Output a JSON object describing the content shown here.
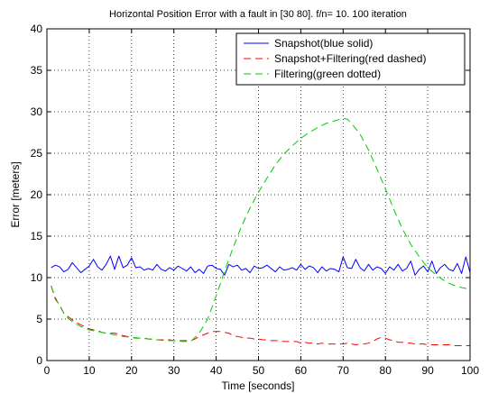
{
  "chart_data": {
    "type": "line",
    "title": "Horizontal Position Error with a fault in [30 80]. f/n= 10. 100 iteration",
    "xlabel": "Time [seconds]",
    "ylabel": "Error [meters]",
    "xlim": [
      0,
      100
    ],
    "ylim": [
      0,
      40
    ],
    "xticks": [
      0,
      10,
      20,
      30,
      40,
      50,
      60,
      70,
      80,
      90,
      100
    ],
    "yticks": [
      0,
      5,
      10,
      15,
      20,
      25,
      30,
      35,
      40
    ],
    "grid": "dotted",
    "legend_position": "top-right",
    "series": [
      {
        "name": "Snapshot(blue solid)",
        "color": "#0000ff",
        "style": "solid",
        "x": [
          1,
          2,
          3,
          4,
          5,
          6,
          7,
          8,
          9,
          10,
          11,
          12,
          13,
          14,
          15,
          16,
          17,
          18,
          19,
          20,
          21,
          22,
          23,
          24,
          25,
          26,
          27,
          28,
          29,
          30,
          31,
          32,
          33,
          34,
          35,
          36,
          37,
          38,
          39,
          40,
          41,
          42,
          43,
          44,
          45,
          46,
          47,
          48,
          49,
          50,
          51,
          52,
          53,
          54,
          55,
          56,
          57,
          58,
          59,
          60,
          61,
          62,
          63,
          64,
          65,
          66,
          67,
          68,
          69,
          70,
          71,
          72,
          73,
          74,
          75,
          76,
          77,
          78,
          79,
          80,
          81,
          82,
          83,
          84,
          85,
          86,
          87,
          88,
          89,
          90,
          91,
          92,
          93,
          94,
          95,
          96,
          97,
          98,
          99,
          100
        ],
        "y": [
          11.2,
          11.5,
          11.3,
          10.7,
          11.0,
          11.8,
          11.2,
          10.6,
          11.0,
          11.4,
          12.2,
          11.3,
          10.9,
          11.6,
          12.6,
          11.0,
          12.6,
          11.2,
          11.5,
          12.4,
          11.2,
          11.3,
          10.9,
          11.1,
          10.9,
          11.6,
          11.0,
          10.8,
          11.2,
          10.9,
          11.4,
          11.1,
          10.8,
          11.3,
          10.6,
          11.0,
          10.5,
          11.4,
          11.5,
          11.1,
          11.0,
          10.3,
          11.6,
          11.3,
          11.5,
          10.9,
          11.1,
          10.6,
          11.4,
          11.1,
          11.2,
          11.5,
          11.1,
          10.7,
          11.3,
          10.9,
          11.0,
          11.2,
          10.9,
          11.6,
          11.0,
          11.4,
          11.2,
          10.6,
          11.3,
          10.8,
          11.1,
          11.0,
          10.7,
          12.5,
          11.2,
          11.1,
          12.2,
          11.2,
          10.8,
          11.6,
          10.9,
          11.3,
          11.1,
          10.5,
          11.3,
          10.9,
          11.6,
          10.8,
          11.1,
          12.0,
          10.3,
          11.0,
          11.4,
          10.7,
          12.0,
          10.5,
          11.2,
          11.6,
          11.0,
          10.8,
          11.7,
          10.5,
          12.5,
          10.6
        ]
      },
      {
        "name": "Snapshot+Filtering(red dashed)",
        "color": "#ff0000",
        "style": "dashed",
        "x": [
          1,
          2,
          3,
          4,
          5,
          6,
          7,
          8,
          9,
          10,
          11,
          12,
          13,
          14,
          15,
          16,
          17,
          18,
          19,
          20,
          21,
          22,
          23,
          24,
          25,
          26,
          27,
          28,
          29,
          30,
          31,
          32,
          33,
          34,
          35,
          36,
          37,
          38,
          39,
          40,
          41,
          42,
          43,
          44,
          45,
          46,
          47,
          48,
          49,
          50,
          51,
          52,
          53,
          54,
          55,
          56,
          57,
          58,
          59,
          60,
          61,
          62,
          63,
          64,
          65,
          66,
          67,
          68,
          69,
          70,
          71,
          72,
          73,
          74,
          75,
          76,
          77,
          78,
          79,
          80,
          81,
          82,
          83,
          84,
          85,
          86,
          87,
          88,
          89,
          90,
          91,
          92,
          93,
          94,
          95,
          96,
          97,
          98,
          99,
          100
        ],
        "y": [
          9.0,
          7.4,
          6.7,
          5.7,
          5.3,
          4.9,
          4.6,
          4.3,
          4.1,
          3.8,
          3.7,
          3.6,
          3.4,
          3.3,
          3.3,
          3.3,
          3.2,
          3.0,
          2.9,
          2.8,
          2.7,
          2.7,
          2.7,
          2.6,
          2.6,
          2.5,
          2.5,
          2.5,
          2.5,
          2.4,
          2.4,
          2.4,
          2.4,
          2.4,
          2.6,
          2.9,
          3.1,
          3.3,
          3.5,
          3.5,
          3.5,
          3.4,
          3.3,
          3.0,
          2.9,
          2.8,
          2.7,
          2.7,
          2.6,
          2.6,
          2.5,
          2.5,
          2.4,
          2.4,
          2.4,
          2.3,
          2.3,
          2.3,
          2.3,
          2.1,
          2.2,
          2.1,
          2.1,
          2.0,
          2.1,
          2.0,
          2.0,
          2.0,
          2.0,
          2.0,
          2.1,
          2.0,
          1.9,
          2.0,
          2.0,
          2.1,
          2.3,
          2.6,
          2.8,
          2.7,
          2.5,
          2.4,
          2.2,
          2.2,
          2.1,
          2.1,
          2.0,
          2.0,
          2.0,
          1.9,
          1.9,
          1.9,
          1.9,
          1.9,
          1.9,
          1.8,
          1.8,
          1.8,
          1.8,
          1.8
        ]
      },
      {
        "name": "Filtering(green dotted)",
        "color": "#00cc00",
        "style": "dashed",
        "x": [
          1,
          2,
          3,
          4,
          5,
          6,
          7,
          8,
          9,
          10,
          12,
          14,
          16,
          18,
          20,
          22,
          24,
          26,
          28,
          30,
          32,
          34,
          36,
          38,
          40,
          42,
          44,
          46,
          48,
          50,
          52,
          54,
          56,
          58,
          60,
          62,
          64,
          66,
          68,
          70,
          71,
          72,
          74,
          76,
          78,
          80,
          82,
          84,
          86,
          88,
          90,
          92,
          94,
          96,
          98,
          100
        ],
        "y": [
          9.0,
          7.6,
          6.6,
          5.7,
          5.1,
          4.7,
          4.4,
          4.1,
          3.9,
          3.7,
          3.5,
          3.3,
          3.1,
          2.9,
          2.8,
          2.7,
          2.6,
          2.5,
          2.4,
          2.4,
          2.3,
          2.3,
          3.3,
          5.0,
          7.8,
          10.8,
          13.6,
          16.2,
          18.4,
          20.3,
          22.0,
          23.6,
          24.9,
          25.9,
          26.8,
          27.5,
          28.1,
          28.6,
          28.9,
          29.2,
          29.1,
          28.6,
          27.3,
          25.4,
          23.1,
          20.7,
          18.2,
          15.9,
          14.0,
          12.5,
          11.2,
          10.3,
          9.6,
          9.1,
          8.8,
          8.6
        ]
      }
    ]
  }
}
